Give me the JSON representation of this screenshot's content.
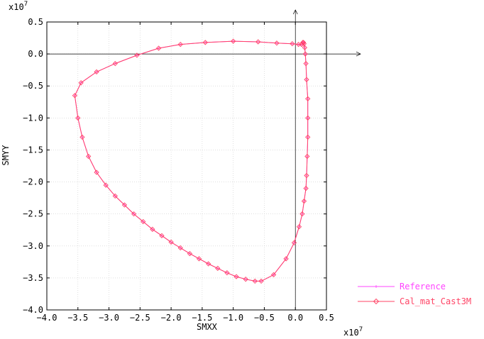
{
  "chart_data": {
    "type": "line",
    "title": "",
    "xlabel": "SMXX",
    "ylabel": "SMYY",
    "x_multiplier_label": "x10",
    "x_multiplier_exp": "7",
    "y_multiplier_label": "x10",
    "y_multiplier_exp": "7",
    "xlim": [
      -4.0,
      0.5
    ],
    "ylim": [
      -4.0,
      0.5
    ],
    "x_ticks": [
      "−4.0",
      "−3.5",
      "−3.0",
      "−2.5",
      "−2.0",
      "−1.5",
      "−1.0",
      "−0.5",
      "0.0",
      "0.5"
    ],
    "y_ticks": [
      "0.5",
      "0.0",
      "−0.5",
      "−1.0",
      "−1.5",
      "−2.0",
      "−2.5",
      "−3.0",
      "−3.5",
      "−4.0"
    ],
    "grid": true,
    "legend_position": "bottom-right",
    "series": [
      {
        "name": "Reference",
        "color": "#ff44ff",
        "marker": "cross",
        "x": [
          0.1,
          0.12,
          0.13,
          0.14,
          0.15,
          0.16,
          0.17,
          0.18,
          0.2,
          0.2,
          0.2,
          0.19,
          0.18,
          0.17,
          0.14,
          0.11,
          0.06,
          -0.02,
          -0.15,
          -0.35,
          -0.55,
          -0.65,
          -0.8,
          -0.95,
          -1.1,
          -1.25,
          -1.4,
          -1.55,
          -1.7,
          -1.85,
          -2.0,
          -2.15,
          -2.3,
          -2.45,
          -2.6,
          -2.75,
          -2.9,
          -3.05,
          -3.2,
          -3.33,
          -3.43,
          -3.5,
          -3.55,
          -3.45,
          -3.2,
          -2.9,
          -2.55,
          -2.2,
          -1.85,
          -1.45,
          -1.0,
          -0.6,
          -0.3,
          -0.05,
          0.05,
          0.1
        ],
        "y": [
          0.15,
          0.18,
          0.18,
          0.16,
          0.1,
          0.0,
          -0.15,
          -0.4,
          -0.7,
          -1.0,
          -1.3,
          -1.6,
          -1.9,
          -2.1,
          -2.3,
          -2.5,
          -2.7,
          -2.95,
          -3.2,
          -3.45,
          -3.55,
          -3.55,
          -3.52,
          -3.48,
          -3.42,
          -3.35,
          -3.28,
          -3.2,
          -3.12,
          -3.03,
          -2.94,
          -2.84,
          -2.74,
          -2.62,
          -2.5,
          -2.36,
          -2.22,
          -2.05,
          -1.85,
          -1.6,
          -1.3,
          -1.0,
          -0.65,
          -0.45,
          -0.28,
          -0.15,
          -0.02,
          0.09,
          0.15,
          0.18,
          0.2,
          0.19,
          0.17,
          0.16,
          0.15,
          0.15
        ]
      },
      {
        "name": "Cal_mat_Cast3M",
        "color": "#ff4466",
        "marker": "diamond",
        "x": [
          0.1,
          0.12,
          0.13,
          0.14,
          0.15,
          0.16,
          0.17,
          0.18,
          0.2,
          0.2,
          0.2,
          0.19,
          0.18,
          0.17,
          0.14,
          0.11,
          0.06,
          -0.02,
          -0.15,
          -0.35,
          -0.55,
          -0.65,
          -0.8,
          -0.95,
          -1.1,
          -1.25,
          -1.4,
          -1.55,
          -1.7,
          -1.85,
          -2.0,
          -2.15,
          -2.3,
          -2.45,
          -2.6,
          -2.75,
          -2.9,
          -3.05,
          -3.2,
          -3.33,
          -3.43,
          -3.5,
          -3.55,
          -3.45,
          -3.2,
          -2.9,
          -2.55,
          -2.2,
          -1.85,
          -1.45,
          -1.0,
          -0.6,
          -0.3,
          -0.05,
          0.05,
          0.1
        ],
        "y": [
          0.15,
          0.18,
          0.18,
          0.16,
          0.1,
          0.0,
          -0.15,
          -0.4,
          -0.7,
          -1.0,
          -1.3,
          -1.6,
          -1.9,
          -2.1,
          -2.3,
          -2.5,
          -2.7,
          -2.95,
          -3.2,
          -3.45,
          -3.55,
          -3.55,
          -3.52,
          -3.48,
          -3.42,
          -3.35,
          -3.28,
          -3.2,
          -3.12,
          -3.03,
          -2.94,
          -2.84,
          -2.74,
          -2.62,
          -2.5,
          -2.36,
          -2.22,
          -2.05,
          -1.85,
          -1.6,
          -1.3,
          -1.0,
          -0.65,
          -0.45,
          -0.28,
          -0.15,
          -0.02,
          0.09,
          0.15,
          0.18,
          0.2,
          0.19,
          0.17,
          0.16,
          0.15,
          0.15
        ]
      }
    ]
  }
}
